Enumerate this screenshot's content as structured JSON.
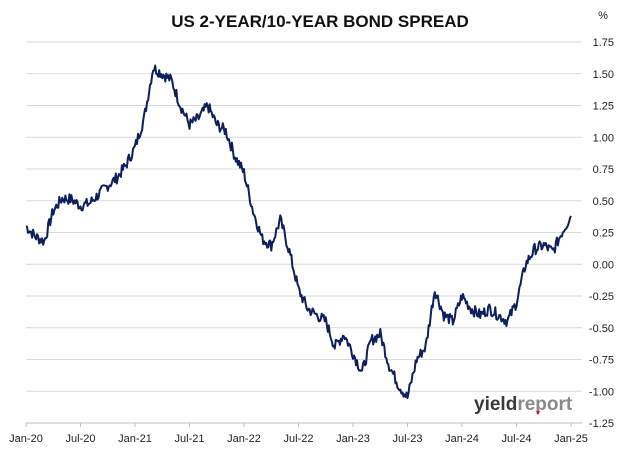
{
  "chart_data": {
    "type": "line",
    "title": "US 2-YEAR/10-YEAR BOND SPREAD",
    "unit_label": "%",
    "xlabel": "",
    "ylabel": "",
    "ylim": [
      -1.25,
      1.75
    ],
    "y_ticks": [
      "1.75",
      "1.50",
      "1.25",
      "1.00",
      "0.75",
      "0.50",
      "0.25",
      "0.00",
      "-0.25",
      "-0.50",
      "-0.75",
      "-1.00",
      "-1.25"
    ],
    "x_ticks": [
      "Jan-20",
      "Jul-20",
      "Jan-21",
      "Jul-21",
      "Jan-22",
      "Jul-22",
      "Jan-23",
      "Jul-23",
      "Jan-24",
      "Jul-24",
      "Jan-25"
    ],
    "grid": true,
    "line_color": "#0d1f5c",
    "series": [
      {
        "name": "",
        "points": [
          [
            "2020-01",
            0.3
          ],
          [
            "2020-02",
            0.22
          ],
          [
            "2020-03",
            0.18
          ],
          [
            "2020-04",
            0.42
          ],
          [
            "2020-05",
            0.52
          ],
          [
            "2020-06",
            0.51
          ],
          [
            "2020-07",
            0.46
          ],
          [
            "2020-08",
            0.48
          ],
          [
            "2020-09",
            0.55
          ],
          [
            "2020-10",
            0.62
          ],
          [
            "2020-11",
            0.68
          ],
          [
            "2020-12",
            0.78
          ],
          [
            "2021-01",
            0.92
          ],
          [
            "2021-02",
            1.15
          ],
          [
            "2021-03",
            1.55
          ],
          [
            "2021-04",
            1.5
          ],
          [
            "2021-05",
            1.45
          ],
          [
            "2021-06",
            1.25
          ],
          [
            "2021-07",
            1.1
          ],
          [
            "2021-08",
            1.15
          ],
          [
            "2021-09",
            1.25
          ],
          [
            "2021-10",
            1.1
          ],
          [
            "2021-11",
            1.05
          ],
          [
            "2021-12",
            0.85
          ],
          [
            "2022-01",
            0.72
          ],
          [
            "2022-02",
            0.42
          ],
          [
            "2022-03",
            0.2
          ],
          [
            "2022-04",
            0.15
          ],
          [
            "2022-05",
            0.35
          ],
          [
            "2022-06",
            0.1
          ],
          [
            "2022-07",
            -0.2
          ],
          [
            "2022-08",
            -0.35
          ],
          [
            "2022-09",
            -0.4
          ],
          [
            "2022-10",
            -0.45
          ],
          [
            "2022-11",
            -0.65
          ],
          [
            "2022-12",
            -0.55
          ],
          [
            "2023-01",
            -0.7
          ],
          [
            "2023-02",
            -0.85
          ],
          [
            "2023-03",
            -0.6
          ],
          [
            "2023-04",
            -0.55
          ],
          [
            "2023-05",
            -0.8
          ],
          [
            "2023-06",
            -0.95
          ],
          [
            "2023-07",
            -1.05
          ],
          [
            "2023-08",
            -0.75
          ],
          [
            "2023-09",
            -0.65
          ],
          [
            "2023-10",
            -0.2
          ],
          [
            "2023-11",
            -0.4
          ],
          [
            "2023-12",
            -0.45
          ],
          [
            "2024-01",
            -0.25
          ],
          [
            "2024-02",
            -0.35
          ],
          [
            "2024-03",
            -0.4
          ],
          [
            "2024-04",
            -0.35
          ],
          [
            "2024-05",
            -0.4
          ],
          [
            "2024-06",
            -0.45
          ],
          [
            "2024-07",
            -0.3
          ],
          [
            "2024-08",
            0.0
          ],
          [
            "2024-09",
            0.12
          ],
          [
            "2024-10",
            0.15
          ],
          [
            "2024-11",
            0.1
          ],
          [
            "2024-12",
            0.25
          ],
          [
            "2025-01",
            0.38
          ]
        ]
      }
    ]
  },
  "watermark": {
    "part1": "yield",
    "part2": "report"
  }
}
